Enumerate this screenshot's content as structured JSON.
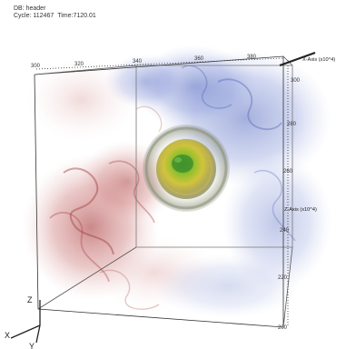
{
  "header": {
    "title": "DB: header",
    "cycle_label": "Cycle: 112467",
    "time_label": "Time:7120.01"
  },
  "axes": {
    "x_axis_label": "X-Axis (x10^4)",
    "z_axis_label": "Z-Axis (x10^4)",
    "top_ticks": [
      "300",
      "320",
      "340",
      "360",
      "380"
    ],
    "side_ticks": [
      "300",
      "280",
      "260",
      "240",
      "220",
      "200"
    ]
  },
  "triad": {
    "x": "X",
    "y": "Y",
    "z": "Z"
  },
  "colors": {
    "blue_fluid": "#6a7fcc",
    "red_fluid": "#c65a5a",
    "core_green": "#7cbf3a",
    "core_yellow": "#d8c94a",
    "shell_grey": "#9a9c8a"
  }
}
